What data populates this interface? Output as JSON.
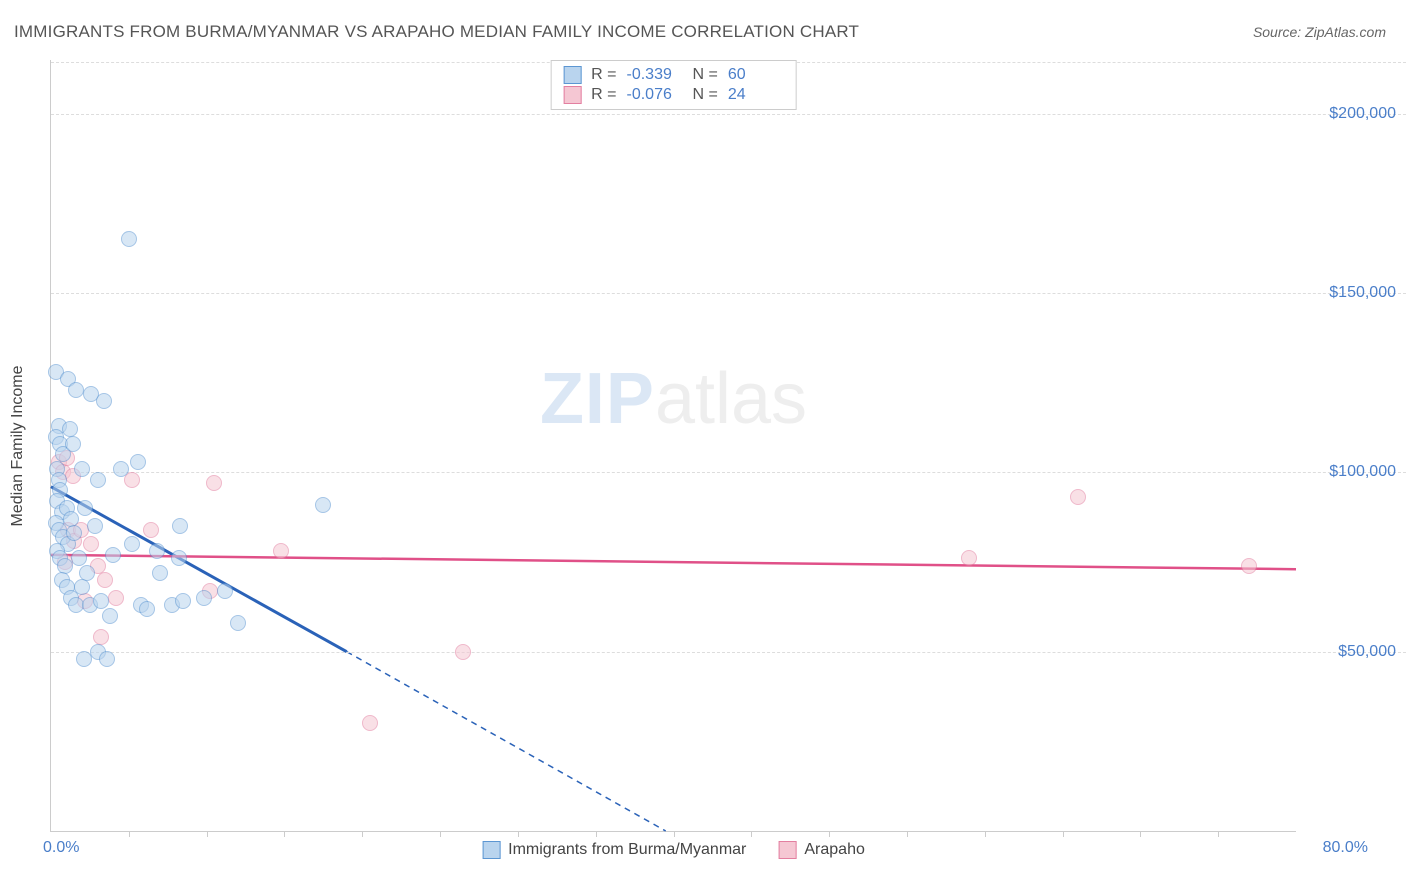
{
  "title": "IMMIGRANTS FROM BURMA/MYANMAR VS ARAPAHO MEDIAN FAMILY INCOME CORRELATION CHART",
  "source_label": "Source: ",
  "source_value": "ZipAtlas.com",
  "ylabel": "Median Family Income",
  "chart": {
    "type": "scatter",
    "xlim": [
      0,
      80
    ],
    "ylim": [
      0,
      215000
    ],
    "x_tick_start": "0.0%",
    "x_tick_end": "80.0%",
    "y_ticks": [
      {
        "v": 50000,
        "label": "$50,000"
      },
      {
        "v": 100000,
        "label": "$100,000"
      },
      {
        "v": 150000,
        "label": "$150,000"
      },
      {
        "v": 200000,
        "label": "$200,000"
      }
    ],
    "x_tick_marks": [
      5,
      10,
      15,
      20,
      25,
      30,
      35,
      40,
      45,
      50,
      55,
      60,
      65,
      70,
      75
    ],
    "background_color": "#ffffff",
    "grid_color": "#dddddd",
    "axis_color": "#cccccc",
    "tick_label_color": "#4a7ec9",
    "point_radius": 8,
    "point_border_width": 1,
    "watermark": {
      "part1": "ZIP",
      "part2": "atlas",
      "color1": "#dbe7f5",
      "color2": "#eeeeee",
      "fontsize": 72
    }
  },
  "series": {
    "a": {
      "name": "Immigrants from Burma/Myanmar",
      "fill": "#b9d4ee",
      "stroke": "#5c96d2",
      "fill_opacity": 0.55,
      "R": "-0.339",
      "N": "60",
      "trend": {
        "x1": 0,
        "y1": 96000,
        "x2_solid": 19,
        "y2_solid": 50000,
        "x2_dash": 39.5,
        "y2_dash": 0,
        "color": "#2a62b8",
        "width": 3,
        "dash": "6,5"
      },
      "points": [
        {
          "x": 0.3,
          "y": 128000
        },
        {
          "x": 0.5,
          "y": 113000
        },
        {
          "x": 0.3,
          "y": 110000
        },
        {
          "x": 0.6,
          "y": 108000
        },
        {
          "x": 0.8,
          "y": 105000
        },
        {
          "x": 0.4,
          "y": 101000
        },
        {
          "x": 0.5,
          "y": 98000
        },
        {
          "x": 1.1,
          "y": 126000
        },
        {
          "x": 1.6,
          "y": 123000
        },
        {
          "x": 1.2,
          "y": 112000
        },
        {
          "x": 1.4,
          "y": 108000
        },
        {
          "x": 0.6,
          "y": 95000
        },
        {
          "x": 0.4,
          "y": 92000
        },
        {
          "x": 0.7,
          "y": 89000
        },
        {
          "x": 0.3,
          "y": 86000
        },
        {
          "x": 1.0,
          "y": 90000
        },
        {
          "x": 1.3,
          "y": 87000
        },
        {
          "x": 0.5,
          "y": 84000
        },
        {
          "x": 0.8,
          "y": 82000
        },
        {
          "x": 1.1,
          "y": 80000
        },
        {
          "x": 0.4,
          "y": 78000
        },
        {
          "x": 1.5,
          "y": 83000
        },
        {
          "x": 0.6,
          "y": 76000
        },
        {
          "x": 0.9,
          "y": 74000
        },
        {
          "x": 2.0,
          "y": 101000
        },
        {
          "x": 2.6,
          "y": 122000
        },
        {
          "x": 3.4,
          "y": 120000
        },
        {
          "x": 2.2,
          "y": 90000
        },
        {
          "x": 2.8,
          "y": 85000
        },
        {
          "x": 3.0,
          "y": 98000
        },
        {
          "x": 1.8,
          "y": 76000
        },
        {
          "x": 2.3,
          "y": 72000
        },
        {
          "x": 0.7,
          "y": 70000
        },
        {
          "x": 1.0,
          "y": 68000
        },
        {
          "x": 1.3,
          "y": 65000
        },
        {
          "x": 1.6,
          "y": 63000
        },
        {
          "x": 2.0,
          "y": 68000
        },
        {
          "x": 2.5,
          "y": 63000
        },
        {
          "x": 3.2,
          "y": 64000
        },
        {
          "x": 3.0,
          "y": 50000
        },
        {
          "x": 3.6,
          "y": 48000
        },
        {
          "x": 3.8,
          "y": 60000
        },
        {
          "x": 4.5,
          "y": 101000
        },
        {
          "x": 5.8,
          "y": 63000
        },
        {
          "x": 5.6,
          "y": 103000
        },
        {
          "x": 6.2,
          "y": 62000
        },
        {
          "x": 6.8,
          "y": 78000
        },
        {
          "x": 7.0,
          "y": 72000
        },
        {
          "x": 7.8,
          "y": 63000
        },
        {
          "x": 8.2,
          "y": 76000
        },
        {
          "x": 8.5,
          "y": 64000
        },
        {
          "x": 8.3,
          "y": 85000
        },
        {
          "x": 9.8,
          "y": 65000
        },
        {
          "x": 11.2,
          "y": 67000
        },
        {
          "x": 12.0,
          "y": 58000
        },
        {
          "x": 5.0,
          "y": 165000
        },
        {
          "x": 17.5,
          "y": 91000
        },
        {
          "x": 4.0,
          "y": 77000
        },
        {
          "x": 5.2,
          "y": 80000
        },
        {
          "x": 2.1,
          "y": 48000
        }
      ]
    },
    "b": {
      "name": "Arapaho",
      "fill": "#f5c7d3",
      "stroke": "#e37fa0",
      "fill_opacity": 0.55,
      "R": "-0.076",
      "N": "24",
      "trend": {
        "x1": 0,
        "y1": 77000,
        "x2": 80,
        "y2": 73000,
        "color": "#e05088",
        "width": 2.5
      },
      "points": [
        {
          "x": 0.5,
          "y": 103000
        },
        {
          "x": 0.8,
          "y": 100000
        },
        {
          "x": 1.0,
          "y": 104000
        },
        {
          "x": 1.4,
          "y": 99000
        },
        {
          "x": 1.1,
          "y": 84000
        },
        {
          "x": 1.5,
          "y": 81000
        },
        {
          "x": 1.9,
          "y": 84000
        },
        {
          "x": 0.9,
          "y": 75000
        },
        {
          "x": 2.6,
          "y": 80000
        },
        {
          "x": 3.0,
          "y": 74000
        },
        {
          "x": 2.2,
          "y": 64000
        },
        {
          "x": 3.5,
          "y": 70000
        },
        {
          "x": 4.2,
          "y": 65000
        },
        {
          "x": 3.2,
          "y": 54000
        },
        {
          "x": 5.2,
          "y": 98000
        },
        {
          "x": 6.4,
          "y": 84000
        },
        {
          "x": 10.5,
          "y": 97000
        },
        {
          "x": 10.2,
          "y": 67000
        },
        {
          "x": 14.8,
          "y": 78000
        },
        {
          "x": 20.5,
          "y": 30000
        },
        {
          "x": 26.5,
          "y": 50000
        },
        {
          "x": 59.0,
          "y": 76000
        },
        {
          "x": 66.0,
          "y": 93000
        },
        {
          "x": 77.0,
          "y": 74000
        }
      ]
    }
  },
  "legend_top": {
    "R_label": "R =",
    "N_label": "N ="
  }
}
